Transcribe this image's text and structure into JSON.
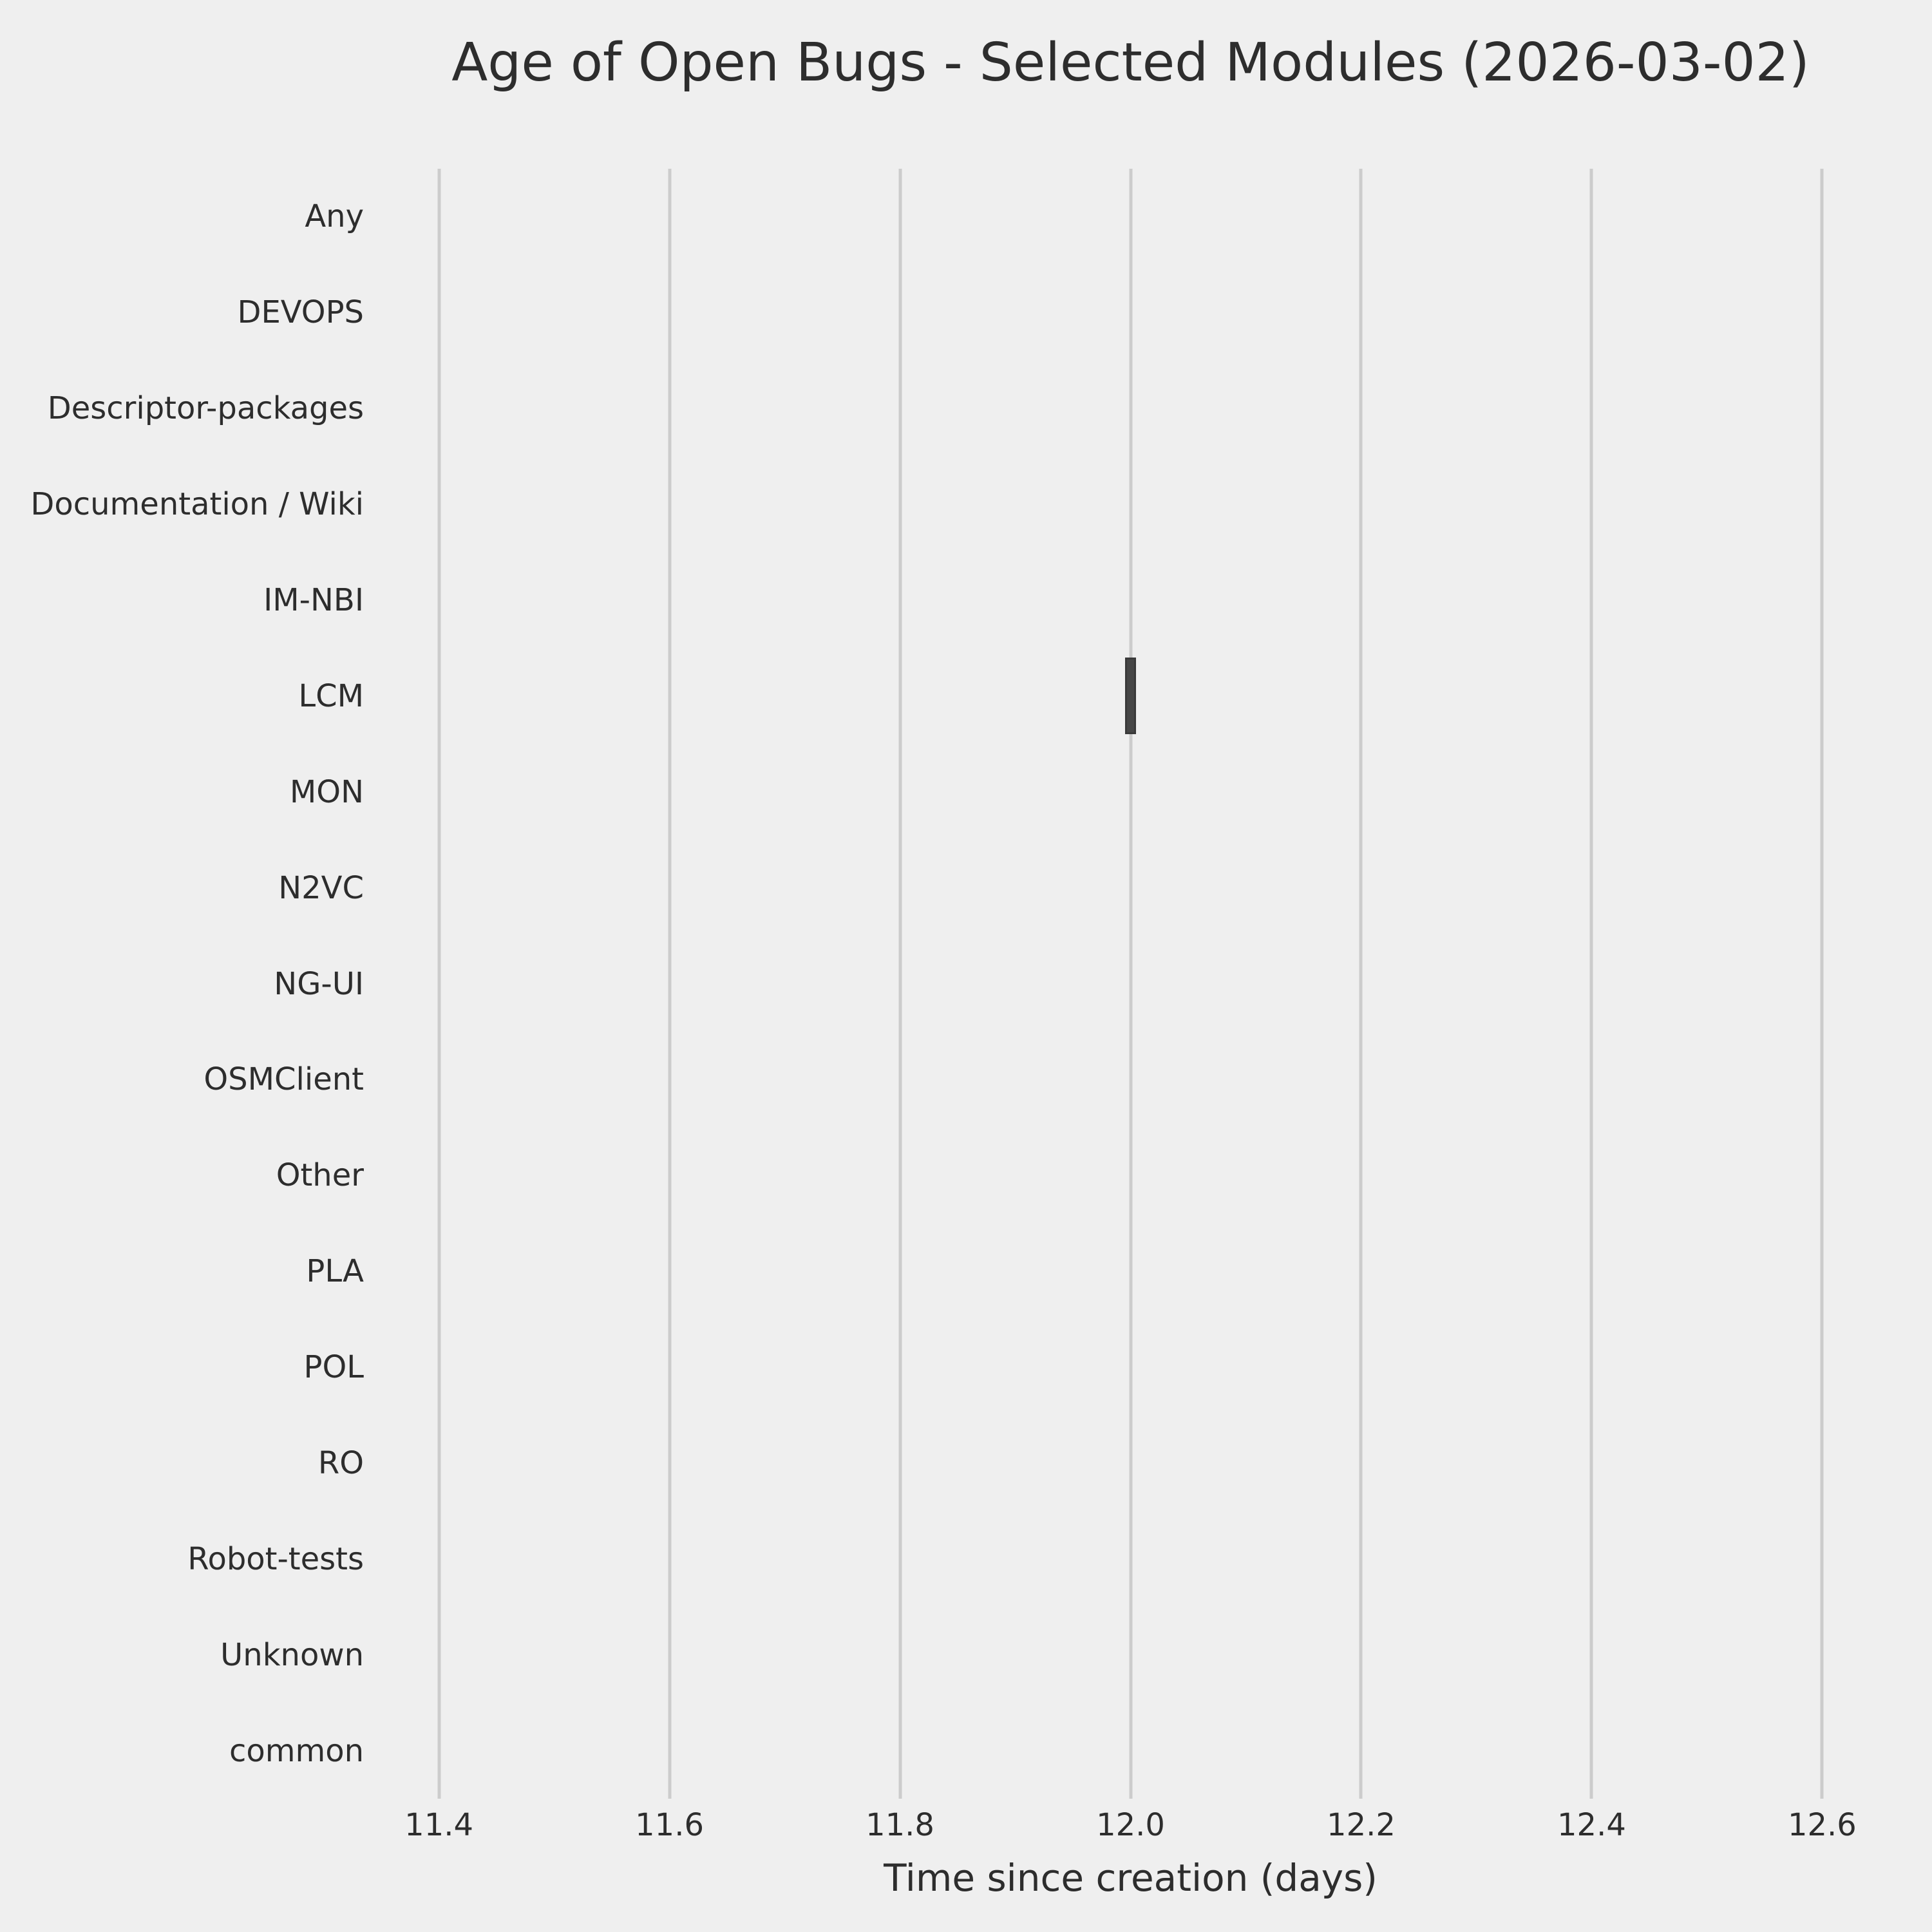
{
  "chart_data": {
    "type": "boxplot",
    "orientation": "horizontal",
    "title": "Age of Open Bugs - Selected Modules (2026-03-02)",
    "xlabel": "Time since creation (days)",
    "ylabel": "",
    "categories": [
      "Any",
      "DEVOPS",
      "Descriptor-packages",
      "Documentation / Wiki",
      "IM-NBI",
      "LCM",
      "MON",
      "N2VC",
      "NG-UI",
      "OSMClient",
      "Other",
      "PLA",
      "POL",
      "RO",
      "Robot-tests",
      "Unknown",
      "common"
    ],
    "xticks": [
      "11.4",
      "11.6",
      "11.8",
      "12.0",
      "12.2",
      "12.4",
      "12.6"
    ],
    "xlim": [
      11.36,
      12.64
    ],
    "grid": "vertical-gridlines-only",
    "legend": "none",
    "series": [
      {
        "category": "LCM",
        "median": 12.0,
        "q1": 11.995,
        "q3": 12.005,
        "whisker_low": 11.995,
        "whisker_high": 12.005
      }
    ],
    "box_height_frac": 0.8,
    "colors": {
      "background": "#efefef",
      "gridline": "#cccccc",
      "box_fill": "#464646",
      "box_edge": "#3a3a3a",
      "text": "#2d2d2d"
    }
  }
}
